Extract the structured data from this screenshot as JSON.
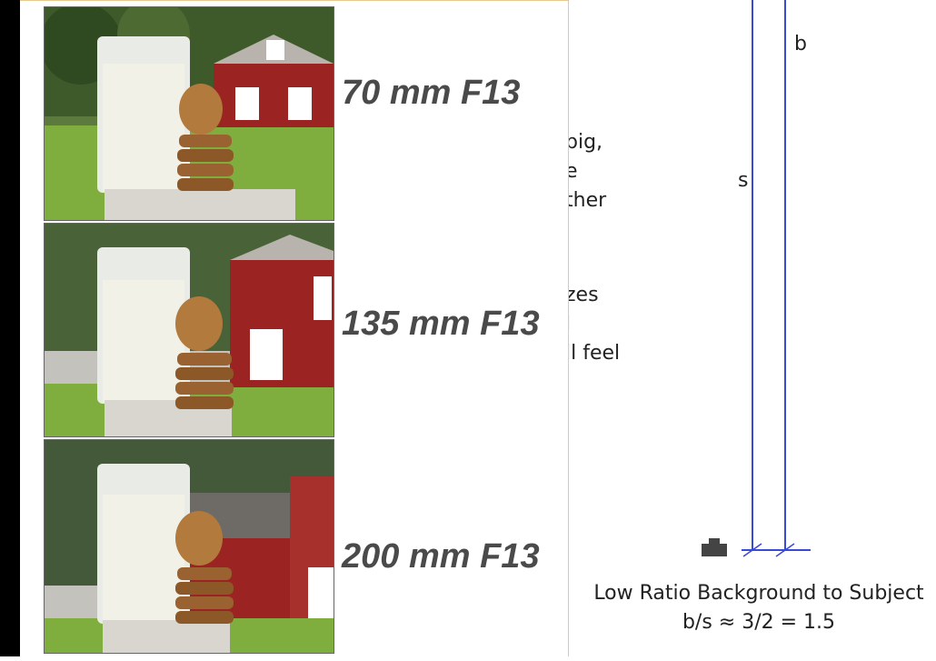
{
  "panels": [
    {
      "label": "70 mm F13"
    },
    {
      "label": "135 mm F13"
    },
    {
      "label": "200 mm F13"
    }
  ],
  "background_text": [
    "big,",
    "e",
    "ther",
    "zes",
    "l",
    "ll feel"
  ],
  "diagram": {
    "b_label": "b",
    "s_label": "s",
    "caption_line1": "Low Ratio Background to Subject",
    "caption_line2": "b/s ≈ 3/2 = 1.5",
    "line_color": "#3a49d6"
  }
}
